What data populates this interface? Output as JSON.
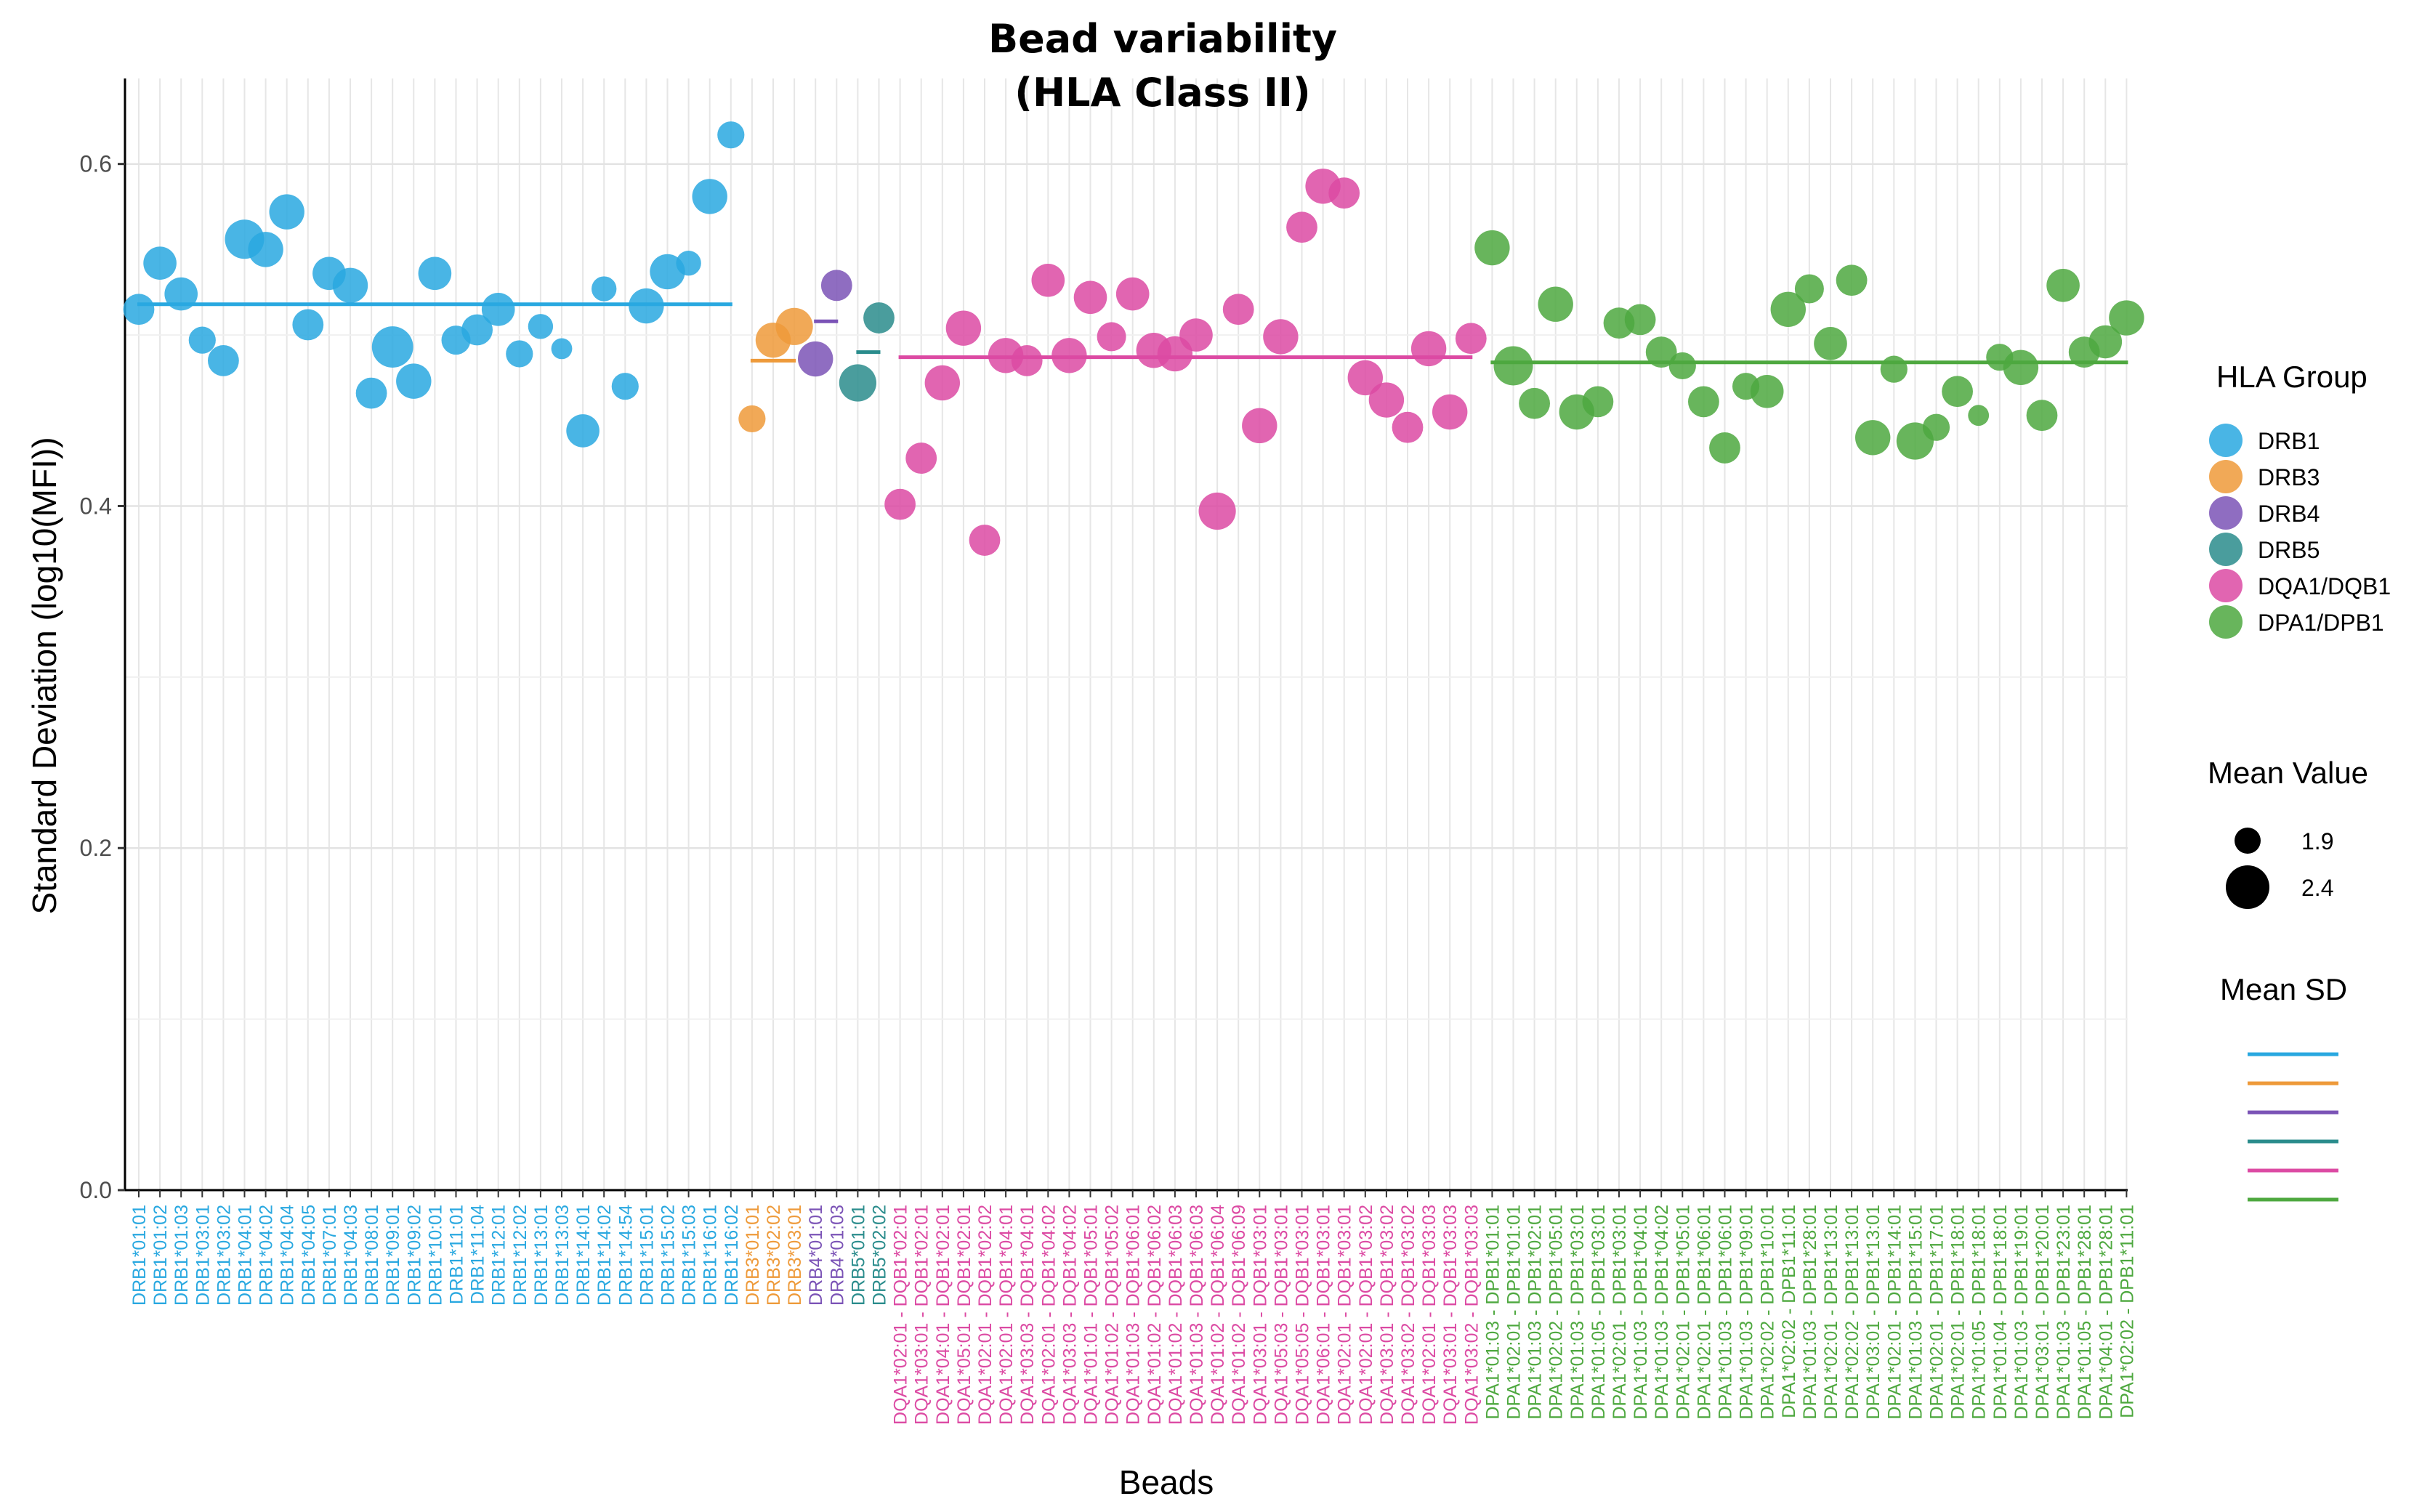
{
  "chart_data": {
    "type": "scatter",
    "title": "Bead variability",
    "subtitle": "(HLA Class II)",
    "xlabel": "Beads",
    "ylabel": "Standard Deviation (log10(MFI))",
    "ylim": [
      0,
      0.65
    ],
    "yticks": [
      "0.0",
      "0.2",
      "0.4",
      "0.6"
    ],
    "grid": true,
    "legend_placement": "right",
    "colors": {
      "DRB1": "#29a8e0",
      "DRB3": "#ee9a3a",
      "DRB4": "#7b53b6",
      "DRB5": "#2a8c8c",
      "DQA1/DQB1": "#dc4aa3",
      "DPA1/DPB1": "#4ea83f"
    },
    "legend": {
      "group_title": "HLA Group",
      "groups": [
        "DRB1",
        "DRB3",
        "DRB4",
        "DRB5",
        "DQA1/DQB1",
        "DPA1/DPB1"
      ],
      "size_title": "Mean Value",
      "sizes": [
        {
          "label": "1.9",
          "value": 1.9
        },
        {
          "label": "2.4",
          "value": 2.4
        }
      ],
      "line_title": "Mean SD"
    },
    "means": [
      {
        "group": "DRB1",
        "value": 0.518
      },
      {
        "group": "DRB3",
        "value": 0.485
      },
      {
        "group": "DRB4",
        "value": 0.508
      },
      {
        "group": "DRB5",
        "value": 0.49
      },
      {
        "group": "DQA1/DQB1",
        "value": 0.487
      },
      {
        "group": "DPA1/DPB1",
        "value": 0.484
      }
    ],
    "series": [
      {
        "name": "DRB1",
        "points": [
          {
            "bead": "DRB1*01:01",
            "sd": 0.515,
            "mean": 2.2
          },
          {
            "bead": "DRB1*01:02",
            "sd": 0.542,
            "mean": 2.25
          },
          {
            "bead": "DRB1*01:03",
            "sd": 0.524,
            "mean": 2.25
          },
          {
            "bead": "DRB1*03:01",
            "sd": 0.497,
            "mean": 2.1
          },
          {
            "bead": "DRB1*03:02",
            "sd": 0.485,
            "mean": 2.2
          },
          {
            "bead": "DRB1*04:01",
            "sd": 0.556,
            "mean": 2.4
          },
          {
            "bead": "DRB1*04:02",
            "sd": 0.55,
            "mean": 2.3
          },
          {
            "bead": "DRB1*04:04",
            "sd": 0.572,
            "mean": 2.3
          },
          {
            "bead": "DRB1*04:05",
            "sd": 0.506,
            "mean": 2.2
          },
          {
            "bead": "DRB1*07:01",
            "sd": 0.536,
            "mean": 2.25
          },
          {
            "bead": "DRB1*04:03",
            "sd": 0.529,
            "mean": 2.3
          },
          {
            "bead": "DRB1*08:01",
            "sd": 0.466,
            "mean": 2.2
          },
          {
            "bead": "DRB1*09:01",
            "sd": 0.493,
            "mean": 2.45
          },
          {
            "bead": "DRB1*09:02",
            "sd": 0.473,
            "mean": 2.3
          },
          {
            "bead": "DRB1*10:01",
            "sd": 0.536,
            "mean": 2.25
          },
          {
            "bead": "DRB1*11:01",
            "sd": 0.497,
            "mean": 2.15
          },
          {
            "bead": "DRB1*11:04",
            "sd": 0.503,
            "mean": 2.2
          },
          {
            "bead": "DRB1*12:01",
            "sd": 0.515,
            "mean": 2.25
          },
          {
            "bead": "DRB1*12:02",
            "sd": 0.489,
            "mean": 2.1
          },
          {
            "bead": "DRB1*13:01",
            "sd": 0.505,
            "mean": 2.05
          },
          {
            "bead": "DRB1*13:03",
            "sd": 0.492,
            "mean": 1.95
          },
          {
            "bead": "DRB1*14:01",
            "sd": 0.444,
            "mean": 2.25
          },
          {
            "bead": "DRB1*14:02",
            "sd": 0.527,
            "mean": 2.05
          },
          {
            "bead": "DRB1*14:54",
            "sd": 0.47,
            "mean": 2.1
          },
          {
            "bead": "DRB1*15:01",
            "sd": 0.517,
            "mean": 2.3
          },
          {
            "bead": "DRB1*15:02",
            "sd": 0.537,
            "mean": 2.3
          },
          {
            "bead": "DRB1*15:03",
            "sd": 0.542,
            "mean": 2.05
          },
          {
            "bead": "DRB1*16:01",
            "sd": 0.581,
            "mean": 2.3
          },
          {
            "bead": "DRB1*16:02",
            "sd": 0.617,
            "mean": 2.1
          }
        ]
      },
      {
        "name": "DRB3",
        "points": [
          {
            "bead": "DRB3*01:01",
            "sd": 0.451,
            "mean": 2.1
          },
          {
            "bead": "DRB3*02:02",
            "sd": 0.497,
            "mean": 2.3
          },
          {
            "bead": "DRB3*03:01",
            "sd": 0.505,
            "mean": 2.35
          }
        ]
      },
      {
        "name": "DRB4",
        "points": [
          {
            "bead": "DRB4*01:01",
            "sd": 0.486,
            "mean": 2.3
          },
          {
            "bead": "DRB4*01:03",
            "sd": 0.529,
            "mean": 2.2
          }
        ]
      },
      {
        "name": "DRB5",
        "points": [
          {
            "bead": "DRB5*01:01",
            "sd": 0.472,
            "mean": 2.35
          },
          {
            "bead": "DRB5*02:02",
            "sd": 0.51,
            "mean": 2.2
          }
        ]
      },
      {
        "name": "DQA1/DQB1",
        "points": [
          {
            "bead": "DQA1*02:01 - DQB1*02:01",
            "sd": 0.401,
            "mean": 2.2
          },
          {
            "bead": "DQA1*03:01 - DQB1*02:01",
            "sd": 0.428,
            "mean": 2.2
          },
          {
            "bead": "DQA1*04:01 - DQB1*02:01",
            "sd": 0.472,
            "mean": 2.3
          },
          {
            "bead": "DQA1*05:01 - DQB1*02:01",
            "sd": 0.504,
            "mean": 2.3
          },
          {
            "bead": "DQA1*02:01 - DQB1*02:02",
            "sd": 0.38,
            "mean": 2.2
          },
          {
            "bead": "DQA1*02:01 - DQB1*04:01",
            "sd": 0.488,
            "mean": 2.3
          },
          {
            "bead": "DQA1*03:03 - DQB1*04:01",
            "sd": 0.485,
            "mean": 2.2
          },
          {
            "bead": "DQA1*02:01 - DQB1*04:02",
            "sd": 0.532,
            "mean": 2.25
          },
          {
            "bead": "DQA1*03:03 - DQB1*04:02",
            "sd": 0.488,
            "mean": 2.3
          },
          {
            "bead": "DQA1*01:01 - DQB1*05:01",
            "sd": 0.522,
            "mean": 2.25
          },
          {
            "bead": "DQA1*01:02 - DQB1*05:02",
            "sd": 0.499,
            "mean": 2.15
          },
          {
            "bead": "DQA1*01:03 - DQB1*06:01",
            "sd": 0.524,
            "mean": 2.25
          },
          {
            "bead": "DQA1*01:02 - DQB1*06:02",
            "sd": 0.491,
            "mean": 2.3
          },
          {
            "bead": "DQA1*01:02 - DQB1*06:03",
            "sd": 0.489,
            "mean": 2.3
          },
          {
            "bead": "DQA1*01:03 - DQB1*06:03",
            "sd": 0.5,
            "mean": 2.25
          },
          {
            "bead": "DQA1*01:02 - DQB1*06:04",
            "sd": 0.397,
            "mean": 2.35
          },
          {
            "bead": "DQA1*01:02 - DQB1*06:09",
            "sd": 0.515,
            "mean": 2.2
          },
          {
            "bead": "DQA1*03:01 - DQB1*03:01",
            "sd": 0.447,
            "mean": 2.3
          },
          {
            "bead": "DQA1*05:03 - DQB1*03:01",
            "sd": 0.499,
            "mean": 2.3
          },
          {
            "bead": "DQA1*05:05 - DQB1*03:01",
            "sd": 0.563,
            "mean": 2.2
          },
          {
            "bead": "DQA1*06:01 - DQB1*03:01",
            "sd": 0.587,
            "mean": 2.3
          },
          {
            "bead": "DQA1*02:01 - DQB1*03:01",
            "sd": 0.583,
            "mean": 2.2
          },
          {
            "bead": "DQA1*02:01 - DQB1*03:02",
            "sd": 0.475,
            "mean": 2.3
          },
          {
            "bead": "DQA1*03:01 - DQB1*03:02",
            "sd": 0.462,
            "mean": 2.3
          },
          {
            "bead": "DQA1*03:02 - DQB1*03:02",
            "sd": 0.446,
            "mean": 2.2
          },
          {
            "bead": "DQA1*02:01 - DQB1*03:03",
            "sd": 0.492,
            "mean": 2.3
          },
          {
            "bead": "DQA1*03:01 - DQB1*03:03",
            "sd": 0.455,
            "mean": 2.3
          },
          {
            "bead": "DQA1*03:02 - DQB1*03:03",
            "sd": 0.498,
            "mean": 2.2
          }
        ]
      },
      {
        "name": "DPA1/DPB1",
        "points": [
          {
            "bead": "DPA1*01:03 - DPB1*01:01",
            "sd": 0.551,
            "mean": 2.3
          },
          {
            "bead": "DPA1*02:01 - DPB1*01:01",
            "sd": 0.482,
            "mean": 2.4
          },
          {
            "bead": "DPA1*01:03 - DPB1*02:01",
            "sd": 0.46,
            "mean": 2.2
          },
          {
            "bead": "DPA1*02:02 - DPB1*05:01",
            "sd": 0.518,
            "mean": 2.3
          },
          {
            "bead": "DPA1*01:03 - DPB1*03:01",
            "sd": 0.455,
            "mean": 2.3
          },
          {
            "bead": "DPA1*01:05 - DPB1*03:01",
            "sd": 0.461,
            "mean": 2.2
          },
          {
            "bead": "DPA1*02:01 - DPB1*03:01",
            "sd": 0.507,
            "mean": 2.2
          },
          {
            "bead": "DPA1*01:03 - DPB1*04:01",
            "sd": 0.509,
            "mean": 2.2
          },
          {
            "bead": "DPA1*01:03 - DPB1*04:02",
            "sd": 0.49,
            "mean": 2.2
          },
          {
            "bead": "DPA1*02:01 - DPB1*05:01",
            "sd": 0.482,
            "mean": 2.1
          },
          {
            "bead": "DPA1*02:01 - DPB1*06:01",
            "sd": 0.461,
            "mean": 2.2
          },
          {
            "bead": "DPA1*01:03 - DPB1*06:01",
            "sd": 0.434,
            "mean": 2.2
          },
          {
            "bead": "DPA1*01:03 - DPB1*09:01",
            "sd": 0.47,
            "mean": 2.1
          },
          {
            "bead": "DPA1*02:02 - DPB1*10:01",
            "sd": 0.467,
            "mean": 2.25
          },
          {
            "bead": "DPA1*02:02 - DPB1*11:01",
            "sd": 0.515,
            "mean": 2.3
          },
          {
            "bead": "DPA1*01:03 - DPB1*28:01",
            "sd": 0.527,
            "mean": 2.15
          },
          {
            "bead": "DPA1*02:01 - DPB1*13:01",
            "sd": 0.495,
            "mean": 2.25
          },
          {
            "bead": "DPA1*02:02 - DPB1*13:01",
            "sd": 0.532,
            "mean": 2.2
          },
          {
            "bead": "DPA1*03:01 - DPB1*13:01",
            "sd": 0.44,
            "mean": 2.3
          },
          {
            "bead": "DPA1*02:01 - DPB1*14:01",
            "sd": 0.48,
            "mean": 2.1
          },
          {
            "bead": "DPA1*01:03 - DPB1*15:01",
            "sd": 0.438,
            "mean": 2.35
          },
          {
            "bead": "DPA1*02:01 - DPB1*17:01",
            "sd": 0.446,
            "mean": 2.1
          },
          {
            "bead": "DPA1*02:01 - DPB1*18:01",
            "sd": 0.467,
            "mean": 2.2
          },
          {
            "bead": "DPA1*01:05 - DPB1*18:01",
            "sd": 0.453,
            "mean": 1.95
          },
          {
            "bead": "DPA1*01:04 - DPB1*18:01",
            "sd": 0.487,
            "mean": 2.1
          },
          {
            "bead": "DPA1*01:03 - DPB1*19:01",
            "sd": 0.481,
            "mean": 2.3
          },
          {
            "bead": "DPA1*03:01 - DPB1*20:01",
            "sd": 0.453,
            "mean": 2.2
          },
          {
            "bead": "DPA1*01:03 - DPB1*23:01",
            "sd": 0.529,
            "mean": 2.25
          },
          {
            "bead": "DPA1*01:05 - DPB1*28:01",
            "sd": 0.49,
            "mean": 2.2
          },
          {
            "bead": "DPA1*04:01 - DPB1*28:01",
            "sd": 0.496,
            "mean": 2.25
          },
          {
            "bead": "DPA1*02:02 - DPB1*11:01",
            "sd": 0.51,
            "mean": 2.3
          }
        ]
      }
    ]
  }
}
